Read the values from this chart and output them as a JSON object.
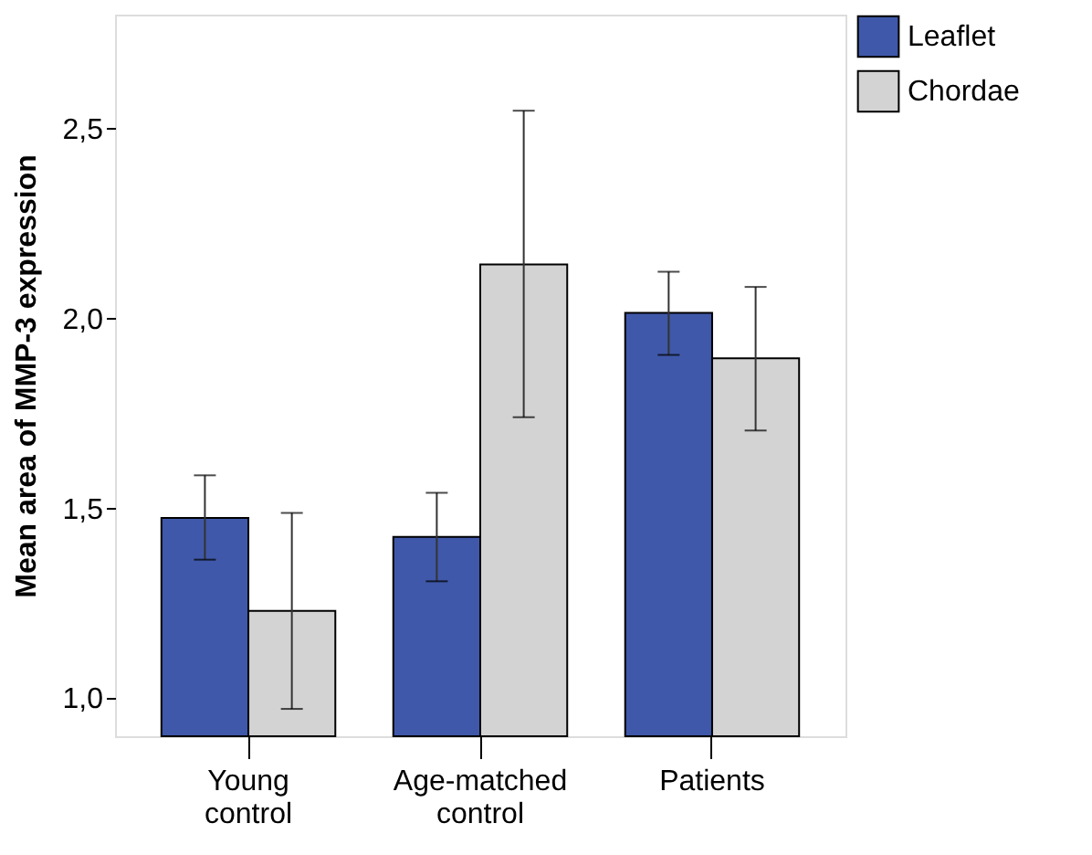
{
  "chart_data": {
    "type": "bar",
    "ylabel": "Mean area of MMP-3 expression",
    "categories": [
      "Young control",
      "Age-matched control",
      "Patients"
    ],
    "series": [
      {
        "name": "Leaflet",
        "color": "#3f58a9",
        "values": [
          1.475,
          1.425,
          2.015
        ],
        "errors": [
          [
            1.365,
            1.587
          ],
          [
            1.308,
            1.541
          ],
          [
            1.904,
            2.123
          ]
        ]
      },
      {
        "name": "Chordae",
        "color": "#d3d3d3",
        "values": [
          1.23,
          2.142,
          1.895
        ],
        "errors": [
          [
            0.972,
            1.488
          ],
          [
            1.74,
            2.547
          ],
          [
            1.705,
            2.083
          ]
        ]
      }
    ],
    "ylim": [
      0.9,
      2.8
    ],
    "yticks": [
      {
        "value": 1.0,
        "label": "1,0"
      },
      {
        "value": 1.5,
        "label": "1,5"
      },
      {
        "value": 2.0,
        "label": "2,0"
      },
      {
        "value": 2.5,
        "label": "2,5"
      }
    ],
    "grid": false,
    "legend": "top right"
  }
}
